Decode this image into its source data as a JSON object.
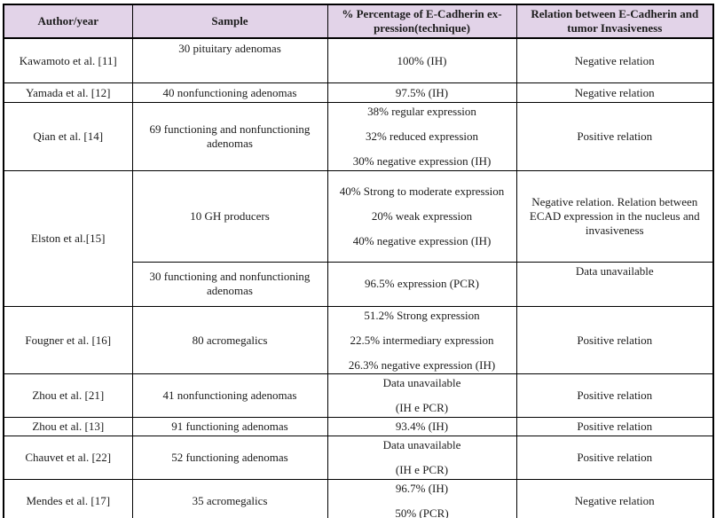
{
  "colors": {
    "header_background": "#e2d3e8",
    "border": "#000000",
    "text": "#1b1b1b",
    "page_background": "#ffffff"
  },
  "table": {
    "headers": [
      "Author/year",
      "Sample",
      "% Percentage of E-Cadherin ex-pression(technique)",
      "Relation between E-Cadherin and tumor Invasiveness"
    ],
    "rows": [
      {
        "cells": [
          {
            "lines": [
              "Kawamoto et al. [11]"
            ]
          },
          {
            "lines": [
              "30 pituitary adenomas",
              ""
            ]
          },
          {
            "lines": [
              "100% (IH)"
            ]
          },
          {
            "lines": [
              "Negative relation"
            ]
          }
        ]
      },
      {
        "cells": [
          {
            "lines": [
              "Yamada et al. [12]"
            ]
          },
          {
            "lines": [
              "40 nonfunctioning adenomas"
            ]
          },
          {
            "lines": [
              "97.5% (IH)"
            ]
          },
          {
            "lines": [
              "Negative relation"
            ]
          }
        ]
      },
      {
        "cells": [
          {
            "lines": [
              "Qian et al. [14]"
            ]
          },
          {
            "lines": [
              "69 functioning and nonfunctioning adenomas"
            ]
          },
          {
            "lines": [
              "38% regular expression",
              "32% reduced expression",
              "30% negative expression (IH)"
            ]
          },
          {
            "lines": [
              "Positive relation"
            ]
          }
        ]
      },
      {
        "cells": [
          {
            "lines": [
              "Elston et al.[15]"
            ],
            "rowspan": 2
          },
          {
            "lines": [
              "10 GH producers"
            ]
          },
          {
            "lines": [
              "40% Strong to moderate expression",
              "20% weak expression",
              "40% negative expression (IH)"
            ]
          },
          {
            "lines": [
              "Negative relation. Relation between ECAD expression in the nucleus and invasiveness"
            ]
          }
        ]
      },
      {
        "cells": [
          {
            "lines": [
              "30 functioning and nonfunctioning adenomas"
            ]
          },
          {
            "lines": [
              "96.5% expression (PCR)"
            ]
          },
          {
            "lines": [
              "Data unavailable",
              ""
            ]
          }
        ]
      },
      {
        "cells": [
          {
            "lines": [
              "Fougner et al. [16]"
            ]
          },
          {
            "lines": [
              "80 acromegalics"
            ]
          },
          {
            "lines": [
              "51.2% Strong expression",
              "22.5% intermediary expression",
              "26.3% negative expression (IH)"
            ]
          },
          {
            "lines": [
              "Positive relation"
            ]
          }
        ]
      },
      {
        "cells": [
          {
            "lines": [
              "Zhou et al. [21]"
            ]
          },
          {
            "lines": [
              "41 nonfunctioning adenomas"
            ]
          },
          {
            "lines": [
              "Data unavailable",
              "(IH e PCR)"
            ]
          },
          {
            "lines": [
              "Positive relation"
            ]
          }
        ]
      },
      {
        "cells": [
          {
            "lines": [
              "Zhou et al. [13]"
            ]
          },
          {
            "lines": [
              "91 functioning adenomas"
            ]
          },
          {
            "lines": [
              "93.4% (IH)"
            ]
          },
          {
            "lines": [
              "Positive relation"
            ]
          }
        ]
      },
      {
        "cells": [
          {
            "lines": [
              "Chauvet et al. [22]"
            ]
          },
          {
            "lines": [
              "52 functioning adenomas"
            ]
          },
          {
            "lines": [
              "Data unavailable",
              "(IH e PCR)"
            ]
          },
          {
            "lines": [
              "Positive relation"
            ]
          }
        ]
      },
      {
        "cells": [
          {
            "lines": [
              "Mendes et al. [17]"
            ]
          },
          {
            "lines": [
              "35 acromegalics"
            ]
          },
          {
            "lines": [
              "96.7% (IH)",
              "50% (PCR)"
            ]
          },
          {
            "lines": [
              "Negative relation"
            ]
          }
        ]
      }
    ]
  }
}
